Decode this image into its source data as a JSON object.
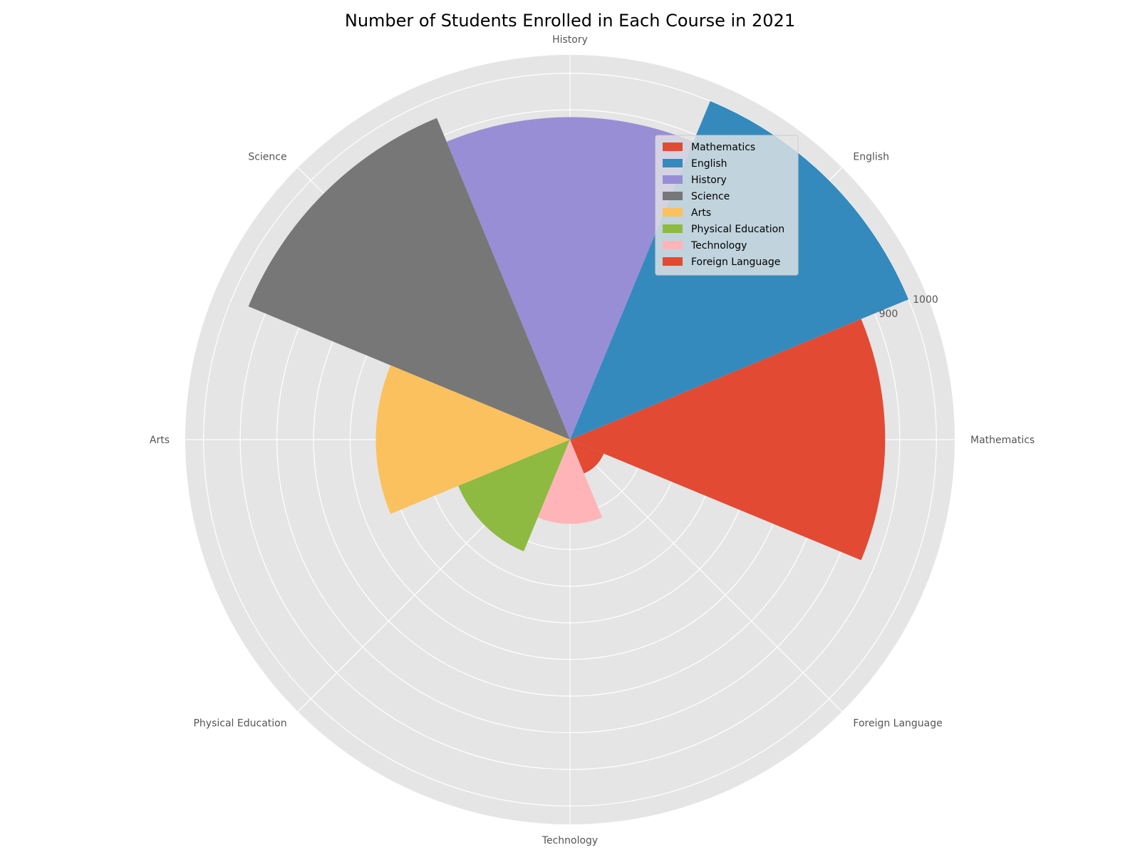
{
  "chart_data": {
    "type": "bar",
    "polar": true,
    "title": "Number of Students Enrolled in Each Course in 2021",
    "categories": [
      "Mathematics",
      "English",
      "History",
      "Science",
      "Arts",
      "Physical Education",
      "Technology",
      "Foreign Language"
    ],
    "values": [
      860,
      1000,
      880,
      950,
      530,
      330,
      230,
      100
    ],
    "colors": [
      "#E24A33",
      "#348ABD",
      "#988ED5",
      "#777777",
      "#FBC15E",
      "#8EBA42",
      "#FFB5B8",
      "#E24A33"
    ],
    "rlim": [
      0,
      1050
    ],
    "radial_tick_labels": [
      "1000",
      "900"
    ],
    "grid": true,
    "legend": {
      "location": "upper-right",
      "entries": [
        "Mathematics",
        "English",
        "History",
        "Science",
        "Arts",
        "Physical Education",
        "Technology",
        "Foreign Language"
      ]
    }
  }
}
